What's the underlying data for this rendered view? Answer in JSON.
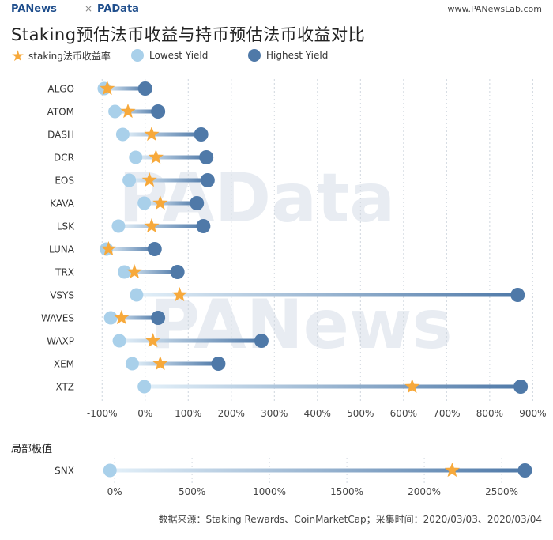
{
  "header": {
    "brand_left": "PANews",
    "brand_sep": "×",
    "brand_right": "PAData",
    "site": "www.PANewsLab.com"
  },
  "title": "Staking预估法币收益与持币预估法币收益对比",
  "legend": {
    "star_label": "staking法币收益率",
    "low_label": "Lowest Yield",
    "high_label": "Highest Yield"
  },
  "section_label": "局部极值",
  "source": "数据来源：Staking Rewards、CoinMarketCap；采集时间：2020/03/03、2020/03/04",
  "watermarks": [
    "PAData",
    "PANews"
  ],
  "colors": {
    "star": "#f7a93b",
    "low": "#a9d0ea",
    "high": "#4f79a8",
    "grid": "#cfd6de"
  },
  "chart_data": [
    {
      "type": "dumbbell",
      "categories": [
        "ALGO",
        "ATOM",
        "DASH",
        "DCR",
        "EOS",
        "KAVA",
        "LSK",
        "LUNA",
        "TRX",
        "VSYS",
        "WAVES",
        "WAXP",
        "XEM",
        "XTZ"
      ],
      "series": [
        {
          "name": "Lowest Yield",
          "unit": "%",
          "values": [
            -95,
            -70,
            -52,
            -22,
            -37,
            -2,
            -62,
            -90,
            -48,
            -20,
            -80,
            -60,
            -30,
            -2
          ]
        },
        {
          "name": "staking法币收益率",
          "unit": "%",
          "values": [
            -88,
            -40,
            15,
            25,
            10,
            35,
            15,
            -85,
            -25,
            80,
            -55,
            18,
            35,
            620
          ]
        },
        {
          "name": "Highest Yield",
          "unit": "%",
          "values": [
            0,
            30,
            130,
            142,
            145,
            120,
            135,
            22,
            75,
            865,
            30,
            270,
            170,
            872
          ]
        }
      ],
      "xlim": [
        -150,
        925
      ],
      "xticks": [
        -100,
        0,
        100,
        200,
        300,
        400,
        500,
        600,
        700,
        800,
        900
      ],
      "xtick_labels": [
        "-100%",
        "0%",
        "100%",
        "200%",
        "300%",
        "400%",
        "500%",
        "600%",
        "700%",
        "800%",
        "900%"
      ],
      "grid": true
    },
    {
      "type": "dumbbell",
      "categories": [
        "SNX"
      ],
      "series": [
        {
          "name": "Lowest Yield",
          "unit": "%",
          "values": [
            -30
          ]
        },
        {
          "name": "staking法币收益率",
          "unit": "%",
          "values": [
            2180
          ]
        },
        {
          "name": "Highest Yield",
          "unit": "%",
          "values": [
            2650
          ]
        }
      ],
      "xlim": [
        -220,
        2770
      ],
      "xticks": [
        0,
        500,
        1000,
        1500,
        2000,
        2500
      ],
      "xtick_labels": [
        "0%",
        "500%",
        "1000%",
        "1500%",
        "2000%",
        "2500%"
      ],
      "grid": true
    }
  ]
}
